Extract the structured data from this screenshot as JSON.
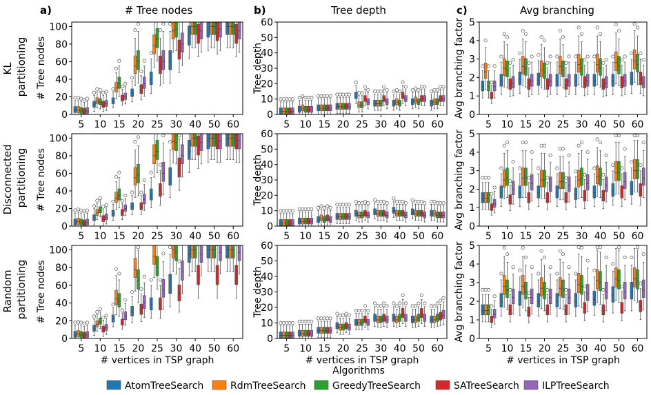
{
  "panel_letters": [
    "a)",
    "b)",
    "c)"
  ],
  "column_titles": [
    "# Tree nodes",
    "Tree depth",
    "Avg branching"
  ],
  "row_labels": [
    [
      "KL",
      "partitioning"
    ],
    [
      "Disconnected",
      "partitioning"
    ],
    [
      "Random",
      "partitioning"
    ]
  ],
  "legend": {
    "title": "Algorithms",
    "items": [
      "AtomTreeSearch",
      "RdmTreeSearch",
      "GreedyTreeSearch",
      "SATreeSearch",
      "ILPTreeSearch"
    ],
    "colors": [
      "#1f77b4",
      "#ff7f0e",
      "#2ca02c",
      "#d62728",
      "#9467bd"
    ]
  },
  "chart_data": [
    {
      "type": "box",
      "panel": "a",
      "row": "KL partitioning",
      "title": "# Tree nodes",
      "xlabel": "",
      "ylabel": "# Tree nodes",
      "categories": [
        "5",
        "10",
        "15",
        "20",
        "25",
        "30",
        "40",
        "50",
        "60"
      ],
      "ylim": [
        0,
        105
      ],
      "yticks": [
        0,
        20,
        40,
        60,
        80,
        100
      ],
      "series": [
        {
          "name": "AtomTreeSearch",
          "medians": [
            5,
            11,
            15,
            24,
            40,
            60,
            88,
            97,
            100
          ]
        },
        {
          "name": "RdmTreeSearch",
          "medians": [
            5,
            15,
            30,
            55,
            78,
            95,
            100,
            100,
            100
          ]
        },
        {
          "name": "GreedyTreeSearch",
          "medians": [
            4,
            14,
            35,
            60,
            85,
            97,
            100,
            100,
            100
          ]
        },
        {
          "name": "SATreeSearch",
          "medians": [
            3,
            11,
            18,
            28,
            55,
            72,
            90,
            93,
            90
          ]
        },
        {
          "name": "ILPTreeSearch",
          "medians": [
            4,
            12,
            20,
            35,
            60,
            80,
            95,
            97,
            95
          ]
        }
      ]
    },
    {
      "type": "box",
      "panel": "b",
      "row": "KL partitioning",
      "title": "Tree depth",
      "xlabel": "",
      "ylabel": "Tree depth",
      "categories": [
        "5",
        "10",
        "15",
        "20",
        "25",
        "30",
        "40",
        "50",
        "60"
      ],
      "ylim": [
        0,
        60
      ],
      "yticks": [
        0,
        10,
        20,
        30,
        40,
        50,
        60
      ],
      "series": [
        {
          "name": "AtomTreeSearch",
          "medians": [
            2,
            3,
            4,
            5,
            12,
            7,
            7,
            8,
            7
          ]
        },
        {
          "name": "RdmTreeSearch",
          "medians": [
            2,
            4,
            4,
            5,
            6,
            7,
            8,
            9,
            8
          ]
        },
        {
          "name": "GreedyTreeSearch",
          "medians": [
            2,
            3,
            4,
            5,
            6,
            7,
            7,
            8,
            8
          ]
        },
        {
          "name": "SATreeSearch",
          "medians": [
            2,
            3,
            4,
            5,
            10,
            10,
            12,
            10,
            10
          ]
        },
        {
          "name": "ILPTreeSearch",
          "medians": [
            2,
            3,
            4,
            5,
            8,
            8,
            10,
            10,
            10
          ]
        }
      ]
    },
    {
      "type": "box",
      "panel": "c",
      "row": "KL partitioning",
      "title": "Avg branching",
      "xlabel": "",
      "ylabel": "Avg branching factor",
      "categories": [
        "5",
        "10",
        "15",
        "20",
        "25",
        "30",
        "40",
        "50",
        "60"
      ],
      "ylim": [
        0,
        5
      ],
      "yticks": [
        0,
        1,
        2,
        3,
        4,
        5
      ],
      "series": [
        {
          "name": "AtomTreeSearch",
          "medians": [
            1.5,
            1.8,
            1.9,
            1.85,
            1.8,
            1.8,
            1.8,
            1.8,
            1.9
          ]
        },
        {
          "name": "RdmTreeSearch",
          "medians": [
            2.3,
            2.5,
            2.6,
            2.4,
            2.6,
            2.7,
            2.7,
            2.8,
            2.9
          ]
        },
        {
          "name": "GreedyTreeSearch",
          "medians": [
            1.5,
            2.4,
            2.5,
            2.3,
            2.4,
            2.5,
            2.5,
            2.6,
            2.7
          ]
        },
        {
          "name": "SATreeSearch",
          "medians": [
            1.0,
            1.6,
            1.6,
            1.6,
            1.6,
            1.7,
            1.6,
            1.7,
            1.9
          ]
        },
        {
          "name": "ILPTreeSearch",
          "medians": [
            1.5,
            1.7,
            1.8,
            1.8,
            1.8,
            1.8,
            1.7,
            1.8,
            1.7
          ]
        }
      ]
    },
    {
      "type": "box",
      "panel": "a",
      "row": "Disconnected partitioning",
      "title": "",
      "xlabel": "",
      "ylabel": "# Tree nodes",
      "categories": [
        "5",
        "10",
        "15",
        "20",
        "25",
        "30",
        "40",
        "50",
        "60"
      ],
      "ylim": [
        0,
        105
      ],
      "yticks": [
        0,
        20,
        40,
        60,
        80,
        100
      ],
      "series": [
        {
          "name": "AtomTreeSearch",
          "medians": [
            4,
            9,
            14,
            22,
            35,
            55,
            85,
            97,
            100
          ]
        },
        {
          "name": "RdmTreeSearch",
          "medians": [
            5,
            15,
            32,
            55,
            80,
            96,
            100,
            100,
            100
          ]
        },
        {
          "name": "GreedyTreeSearch",
          "medians": [
            4,
            18,
            35,
            58,
            85,
            95,
            100,
            100,
            100
          ]
        },
        {
          "name": "SATreeSearch",
          "medians": [
            3,
            8,
            15,
            22,
            40,
            65,
            90,
            97,
            97
          ]
        },
        {
          "name": "ILPTreeSearch",
          "medians": [
            4,
            10,
            20,
            30,
            60,
            80,
            95,
            97,
            97
          ]
        }
      ]
    },
    {
      "type": "box",
      "panel": "b",
      "row": "Disconnected partitioning",
      "title": "",
      "xlabel": "",
      "ylabel": "Tree depth",
      "categories": [
        "5",
        "10",
        "15",
        "20",
        "25",
        "30",
        "40",
        "50",
        "60"
      ],
      "ylim": [
        0,
        60
      ],
      "yticks": [
        0,
        10,
        20,
        30,
        40,
        50,
        60
      ],
      "series": [
        {
          "name": "AtomTreeSearch",
          "medians": [
            2,
            3,
            4,
            6,
            8,
            9,
            10,
            9,
            8
          ]
        },
        {
          "name": "RdmTreeSearch",
          "medians": [
            2,
            3,
            5,
            6,
            7,
            8,
            8,
            8,
            8
          ]
        },
        {
          "name": "GreedyTreeSearch",
          "medians": [
            2,
            3,
            4,
            6,
            7,
            8,
            8,
            8,
            7
          ]
        },
        {
          "name": "SATreeSearch",
          "medians": [
            2,
            3,
            5,
            6,
            8,
            8,
            8,
            8,
            7
          ]
        },
        {
          "name": "ILPTreeSearch",
          "medians": [
            2,
            3,
            4,
            6,
            7,
            7,
            7,
            7,
            7
          ]
        }
      ]
    },
    {
      "type": "box",
      "panel": "c",
      "row": "Disconnected partitioning",
      "title": "",
      "xlabel": "",
      "ylabel": "Avg branching factor",
      "categories": [
        "5",
        "10",
        "15",
        "20",
        "25",
        "30",
        "40",
        "50",
        "60"
      ],
      "ylim": [
        0,
        5
      ],
      "yticks": [
        0,
        1,
        2,
        3,
        4,
        5
      ],
      "series": [
        {
          "name": "AtomTreeSearch",
          "medians": [
            1.5,
            1.8,
            1.8,
            1.8,
            1.8,
            1.7,
            1.8,
            1.9,
            2.0
          ]
        },
        {
          "name": "RdmTreeSearch",
          "medians": [
            1.5,
            2.5,
            2.6,
            2.5,
            2.4,
            2.5,
            2.7,
            2.9,
            3.0
          ]
        },
        {
          "name": "GreedyTreeSearch",
          "medians": [
            1.5,
            2.6,
            2.6,
            2.5,
            2.4,
            2.6,
            2.6,
            2.9,
            3.0
          ]
        },
        {
          "name": "SATreeSearch",
          "medians": [
            1.0,
            1.4,
            1.5,
            1.5,
            1.5,
            1.6,
            1.6,
            1.8,
            1.9
          ]
        },
        {
          "name": "ILPTreeSearch",
          "medians": [
            1.2,
            2.0,
            2.3,
            2.2,
            2.2,
            2.3,
            2.2,
            2.4,
            2.6
          ]
        }
      ]
    },
    {
      "type": "box",
      "panel": "a",
      "row": "Random partitioning",
      "title": "",
      "xlabel": "# vertices in TSP graph",
      "ylabel": "# Tree nodes",
      "categories": [
        "5",
        "10",
        "15",
        "20",
        "25",
        "30",
        "40",
        "50",
        "60"
      ],
      "ylim": [
        0,
        105
      ],
      "yticks": [
        0,
        20,
        40,
        60,
        80,
        100
      ],
      "series": [
        {
          "name": "AtomTreeSearch",
          "medians": [
            4,
            11,
            22,
            30,
            38,
            60,
            95,
            100,
            100
          ]
        },
        {
          "name": "RdmTreeSearch",
          "medians": [
            5,
            16,
            45,
            78,
            93,
            100,
            100,
            100,
            100
          ]
        },
        {
          "name": "GreedyTreeSearch",
          "medians": [
            4,
            19,
            42,
            65,
            80,
            97,
            100,
            100,
            100
          ]
        },
        {
          "name": "SATreeSearch",
          "medians": [
            3,
            10,
            18,
            32,
            38,
            50,
            70,
            70,
            70
          ]
        },
        {
          "name": "ILPTreeSearch",
          "medians": [
            4,
            12,
            25,
            40,
            55,
            75,
            95,
            97,
            97
          ]
        }
      ]
    },
    {
      "type": "box",
      "panel": "b",
      "row": "Random partitioning",
      "title": "",
      "xlabel": "# vertices in TSP graph",
      "ylabel": "Tree depth",
      "categories": [
        "5",
        "10",
        "15",
        "20",
        "25",
        "30",
        "40",
        "50",
        "60"
      ],
      "ylim": [
        0,
        60
      ],
      "yticks": [
        0,
        10,
        20,
        30,
        40,
        50,
        60
      ],
      "series": [
        {
          "name": "AtomTreeSearch",
          "medians": [
            2,
            3,
            5,
            8,
            10,
            13,
            13,
            12,
            12
          ]
        },
        {
          "name": "RdmTreeSearch",
          "medians": [
            2,
            3,
            5,
            7,
            10,
            12,
            12,
            12,
            12
          ]
        },
        {
          "name": "GreedyTreeSearch",
          "medians": [
            2,
            3,
            5,
            7,
            10,
            12,
            13,
            13,
            13
          ]
        },
        {
          "name": "SATreeSearch",
          "medians": [
            2,
            3,
            5,
            8,
            12,
            13,
            16,
            16,
            14
          ]
        },
        {
          "name": "ILPTreeSearch",
          "medians": [
            2,
            3,
            5,
            7,
            10,
            12,
            13,
            13,
            15
          ]
        }
      ]
    },
    {
      "type": "box",
      "panel": "c",
      "row": "Random partitioning",
      "title": "",
      "xlabel": "# vertices in TSP graph",
      "ylabel": "Avg branching factor",
      "categories": [
        "5",
        "10",
        "15",
        "20",
        "25",
        "30",
        "40",
        "50",
        "60"
      ],
      "ylim": [
        0,
        5
      ],
      "yticks": [
        0,
        1,
        2,
        3,
        4,
        5
      ],
      "series": [
        {
          "name": "AtomTreeSearch",
          "medians": [
            1.5,
            2.0,
            2.1,
            2.0,
            2.0,
            2.0,
            2.1,
            2.3,
            2.5
          ]
        },
        {
          "name": "RdmTreeSearch",
          "medians": [
            1.5,
            2.8,
            2.8,
            2.7,
            2.7,
            2.9,
            3.1,
            3.2,
            3.2
          ]
        },
        {
          "name": "GreedyTreeSearch",
          "medians": [
            1.5,
            2.6,
            2.5,
            2.5,
            2.6,
            2.8,
            3.0,
            3.1,
            3.1
          ]
        },
        {
          "name": "SATreeSearch",
          "medians": [
            1.0,
            1.5,
            1.4,
            1.5,
            1.5,
            1.6,
            1.5,
            1.6,
            1.7
          ]
        },
        {
          "name": "ILPTreeSearch",
          "medians": [
            1.3,
            2.2,
            2.2,
            2.2,
            2.2,
            2.4,
            2.5,
            2.5,
            2.6
          ]
        }
      ]
    }
  ]
}
